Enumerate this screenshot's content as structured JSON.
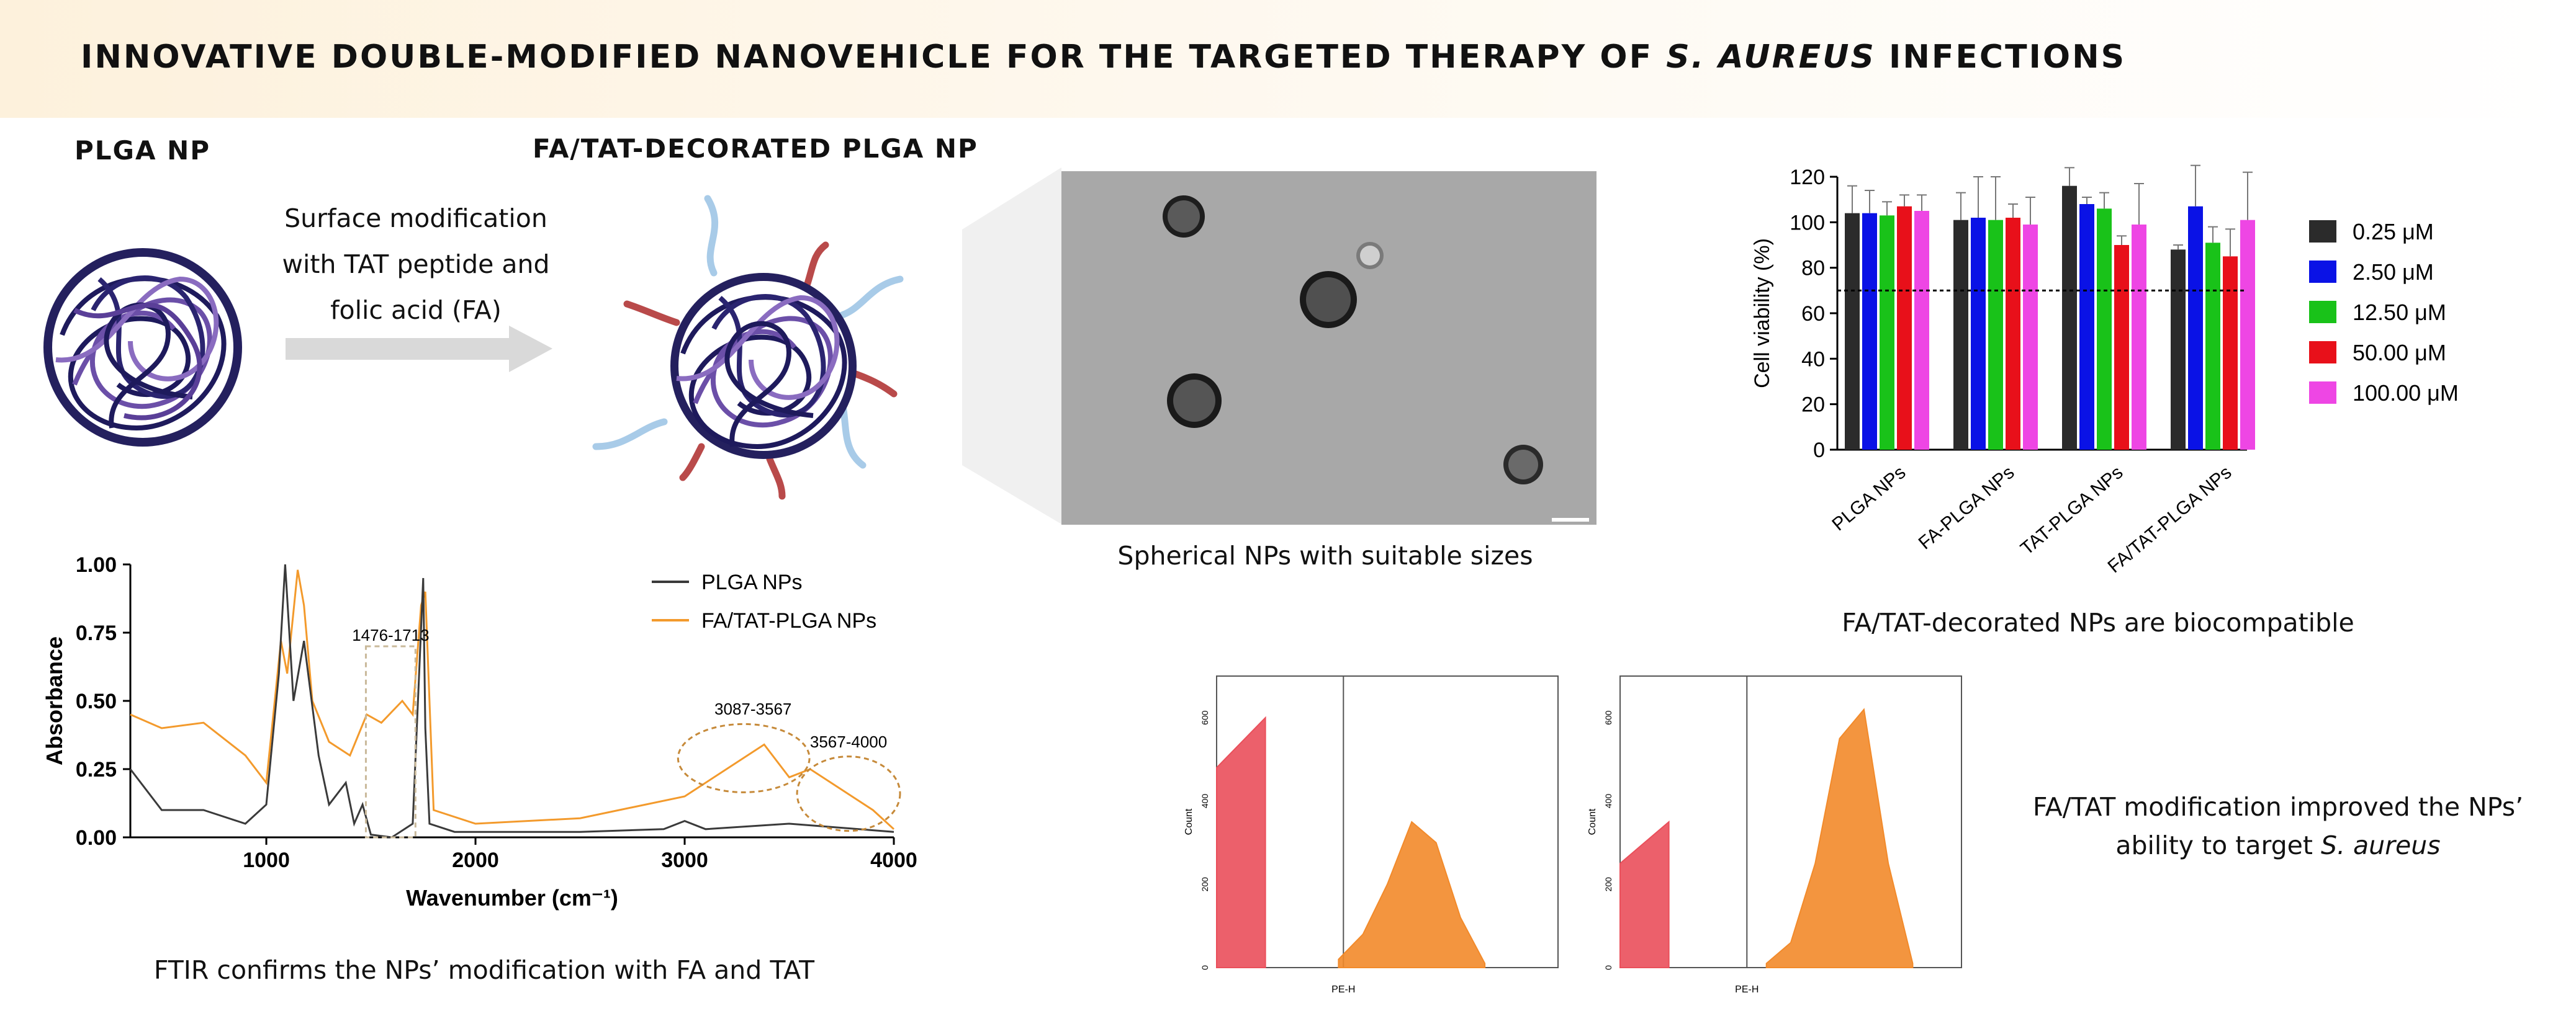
{
  "title": {
    "prefix": "INNOVATIVE DOUBLE-MODIFIED NANOVEHICLE FOR THE TARGETED THERAPY OF ",
    "italic": "S. AUREUS",
    "suffix": " INFECTIONS"
  },
  "plga_np": {
    "label": "PLGA NP"
  },
  "decorated_np": {
    "label": "FA/TAT-DECORATED PLGA NP"
  },
  "surface_modification": {
    "line1": "Surface modification",
    "line2": "with TAT peptide and",
    "line3": "folic acid (FA)"
  },
  "tem": {
    "caption": "Spherical NPs with suitable sizes"
  },
  "viability": {
    "caption": "FA/TAT-decorated NPs are biocompatible"
  },
  "ftir": {
    "caption": "FTIR confirms the NPs’ modification with FA and TAT"
  },
  "flow": {
    "caption_line1": "FA/TAT modification improved the NPs’",
    "caption_prefix2": "ability to target ",
    "caption_italic": "S. aureus"
  },
  "colors": {
    "plga_line": "#3a3a3a",
    "fatat_line": "#f39a2c",
    "c1": "#2b2b2b",
    "c2": "#0a12e6",
    "c3": "#19c219",
    "c4": "#e8101a",
    "c5": "#ee46e4",
    "flow_red": "#ea4f5b",
    "flow_orange": "#f28a2a"
  },
  "chart_data": [
    {
      "type": "bar",
      "ylabel": "Cell viability (%)",
      "ylim": [
        0,
        120
      ],
      "yticks": [
        "0",
        "20",
        "40",
        "60",
        "80",
        "100",
        "120"
      ],
      "categories": [
        "PLGA NPs",
        "FA-PLGA NPs",
        "TAT-PLGA NPs",
        "FA/TAT-PLGA NPs"
      ],
      "reference_line": 70,
      "legend_position": "right",
      "series": [
        {
          "name": "0.25 μM",
          "values": [
            104,
            101,
            116,
            88
          ],
          "errors": [
            12,
            12,
            8,
            2
          ]
        },
        {
          "name": "2.50 μM",
          "values": [
            104,
            102,
            108,
            107
          ],
          "errors": [
            10,
            18,
            3,
            18
          ]
        },
        {
          "name": "12.50 μM",
          "values": [
            103,
            101,
            106,
            91
          ],
          "errors": [
            6,
            19,
            7,
            7
          ]
        },
        {
          "name": "50.00 μM",
          "values": [
            107,
            102,
            90,
            85
          ],
          "errors": [
            5,
            6,
            4,
            12
          ]
        },
        {
          "name": "100.00 μM",
          "values": [
            105,
            99,
            99,
            101
          ],
          "errors": [
            7,
            12,
            18,
            21
          ]
        }
      ]
    },
    {
      "type": "line",
      "xlabel": "Wavenumber (cm⁻¹)",
      "ylabel": "Absorbance",
      "xlim": [
        350,
        4000
      ],
      "ylim": [
        0,
        1
      ],
      "xticks": [
        "1000",
        "2000",
        "3000",
        "4000"
      ],
      "yticks": [
        "0.00",
        "0.25",
        "0.50",
        "0.75",
        "1.00"
      ],
      "legend_position": "top-right",
      "annotations": [
        "1476-1713",
        "3087-3567",
        "3567-4000"
      ],
      "series": [
        {
          "name": "PLGA NPs",
          "x": [
            350,
            500,
            700,
            900,
            1000,
            1060,
            1090,
            1130,
            1180,
            1250,
            1300,
            1380,
            1420,
            1460,
            1500,
            1600,
            1700,
            1750,
            1760,
            1780,
            1900,
            2500,
            2900,
            3000,
            3100,
            3500,
            4000
          ],
          "y": [
            0.25,
            0.1,
            0.1,
            0.05,
            0.12,
            0.6,
            1.0,
            0.5,
            0.72,
            0.3,
            0.12,
            0.2,
            0.05,
            0.12,
            0.01,
            0.0,
            0.05,
            0.95,
            0.4,
            0.05,
            0.02,
            0.02,
            0.03,
            0.06,
            0.03,
            0.05,
            0.02
          ]
        },
        {
          "name": "FA/TAT-PLGA NPs",
          "x": [
            350,
            500,
            700,
            900,
            1000,
            1070,
            1100,
            1150,
            1180,
            1220,
            1300,
            1400,
            1480,
            1550,
            1650,
            1700,
            1740,
            1760,
            1800,
            2000,
            2500,
            3000,
            3200,
            3380,
            3500,
            3600,
            3700,
            3800,
            3900,
            4000
          ],
          "y": [
            0.45,
            0.4,
            0.42,
            0.3,
            0.2,
            0.72,
            0.6,
            0.98,
            0.85,
            0.5,
            0.35,
            0.3,
            0.45,
            0.42,
            0.5,
            0.45,
            0.85,
            0.9,
            0.1,
            0.05,
            0.07,
            0.15,
            0.25,
            0.34,
            0.22,
            0.25,
            0.2,
            0.15,
            0.1,
            0.03
          ]
        }
      ]
    },
    {
      "type": "area",
      "xlabel": "PE-H",
      "ylabel": "Count",
      "yticks": [
        "0",
        "200",
        "400",
        "600"
      ],
      "series": [
        {
          "name": "",
          "x": [
            0,
            1
          ],
          "y": [
            480,
            600
          ]
        },
        {
          "name": "",
          "x": [
            2.5,
            3,
            3.5,
            4,
            4.5,
            5,
            5.5
          ],
          "y": [
            20,
            80,
            200,
            350,
            300,
            120,
            10
          ]
        }
      ]
    },
    {
      "type": "area",
      "xlabel": "PE-H",
      "ylabel": "Count",
      "yticks": [
        "0",
        "200",
        "400",
        "600"
      ],
      "series": [
        {
          "name": "",
          "x": [
            0,
            1
          ],
          "y": [
            250,
            350
          ]
        },
        {
          "name": "",
          "x": [
            3,
            3.5,
            4,
            4.5,
            5,
            5.5,
            6
          ],
          "y": [
            10,
            60,
            250,
            550,
            620,
            250,
            10
          ]
        }
      ]
    }
  ]
}
